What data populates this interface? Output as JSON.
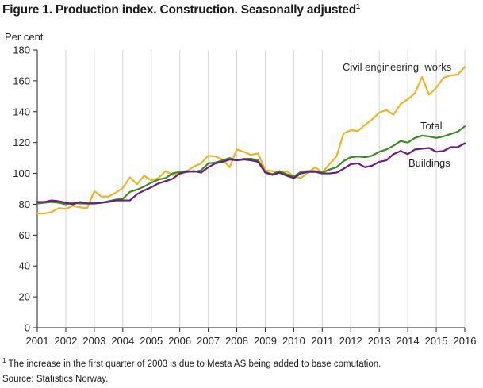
{
  "title": "Figure 1. Production index. Construction. Seasonally adjusted",
  "title_footnote_mark": "1",
  "footnote_mark": "1",
  "footnote": "The increase in the first quarter of 2003 is due to Mesta AS being added to base comutation.",
  "source": "Source: Statistics Norway.",
  "chart_data": {
    "type": "line",
    "title": "Figure 1. Production index. Construction. Seasonally adjusted",
    "ylabel": "Per cent",
    "xlabel": "",
    "ylim": [
      0,
      180
    ],
    "yticks": [
      0,
      20,
      40,
      60,
      80,
      100,
      120,
      140,
      160,
      180
    ],
    "xticks": [
      "2001",
      "2002",
      "2003",
      "2004",
      "2005",
      "2006",
      "2007",
      "2008",
      "2009",
      "2010",
      "2011",
      "2012",
      "2013",
      "2014",
      "2015",
      "2016"
    ],
    "x_start": "2001Q1",
    "grid": "vertical",
    "legend": "inline labels",
    "series": [
      {
        "name": "Civil engineering  works",
        "color": "#f0b323",
        "values": [
          74,
          74,
          75,
          77.5,
          77,
          79,
          78,
          77.5,
          88.5,
          85,
          85,
          87.5,
          90.5,
          97.5,
          93,
          98.5,
          95.5,
          97,
          101.5,
          99,
          99.5,
          101.5,
          104.5,
          106.5,
          111.5,
          111,
          109,
          104,
          115.5,
          114,
          112,
          113,
          102,
          101.5,
          100.5,
          101.5,
          98,
          97,
          100.5,
          104,
          100.5,
          106,
          111,
          126,
          128,
          127.5,
          131.5,
          135,
          139.5,
          141,
          138,
          145,
          148,
          152,
          162.5,
          151,
          155.5,
          162,
          163.5,
          164,
          169
        ]
      },
      {
        "name": "Total",
        "color": "#3a8d1f",
        "values": [
          80.5,
          81,
          81.5,
          81,
          80,
          81,
          80.5,
          80.5,
          81,
          81,
          82,
          83,
          83.5,
          88,
          89.5,
          91.5,
          94,
          96,
          97,
          100,
          101,
          101.5,
          101,
          102,
          106.5,
          107,
          108.5,
          110,
          108.5,
          109.5,
          109.5,
          108.5,
          101,
          99.5,
          101.5,
          99.5,
          98,
          101,
          101.5,
          101.5,
          100.5,
          102.5,
          104,
          108,
          110.5,
          111,
          110.5,
          111.5,
          114,
          115.5,
          118,
          121,
          120,
          123,
          124.5,
          124,
          123,
          124,
          125.5,
          127,
          130.5
        ]
      },
      {
        "name": "Buildings",
        "color": "#6b1a8a",
        "values": [
          81.5,
          81.5,
          82.5,
          82,
          81,
          80,
          81.5,
          80.5,
          80.5,
          81,
          81.5,
          82.5,
          82.5,
          82.5,
          86.5,
          89,
          91,
          93.5,
          95,
          96.5,
          100,
          101,
          101.5,
          100.5,
          104,
          106.5,
          107.5,
          109,
          108.5,
          109,
          108.5,
          107.5,
          100.5,
          99,
          100.5,
          98.5,
          97,
          100,
          101,
          101,
          100,
          100,
          100.5,
          103,
          106,
          106.5,
          104,
          105,
          107.5,
          108.5,
          112.5,
          114.5,
          112.5,
          115.5,
          116,
          116.5,
          114,
          114.5,
          117,
          117,
          119.5
        ]
      }
    ]
  }
}
